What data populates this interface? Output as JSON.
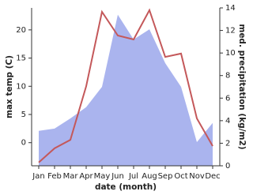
{
  "chart_data": {
    "type": "line",
    "x_label": "date (month)",
    "y_label": "max temp (C)",
    "y2_label": "med. precipitation (kg/m2)",
    "categories": [
      "Jan",
      "Feb",
      "Mar",
      "Apr",
      "May",
      "Jun",
      "Jul",
      "Aug",
      "Sep",
      "Oct",
      "Nov",
      "Dec"
    ],
    "series": [
      {
        "name": "med. precipitation",
        "type": "area",
        "axis": "y2",
        "color": "#aab4ee",
        "values": [
          3.1,
          3.3,
          4.2,
          5.2,
          7,
          13.4,
          11.2,
          12.1,
          9.1,
          7,
          2.1,
          3.8
        ]
      },
      {
        "name": "max temp",
        "type": "line",
        "axis": "y",
        "color": "#c4585a",
        "values": [
          -3.5,
          -1,
          0.5,
          10,
          23.2,
          19,
          18.3,
          23.5,
          15.2,
          15.8,
          4.3,
          -0.6
        ]
      }
    ],
    "ylim": [
      -4.1,
      23.9
    ],
    "yticks": [
      0,
      5,
      10,
      15,
      20
    ],
    "y2lim": [
      0,
      14
    ],
    "y2ticks": [
      0,
      2,
      4,
      6,
      8,
      10,
      12,
      14
    ]
  }
}
